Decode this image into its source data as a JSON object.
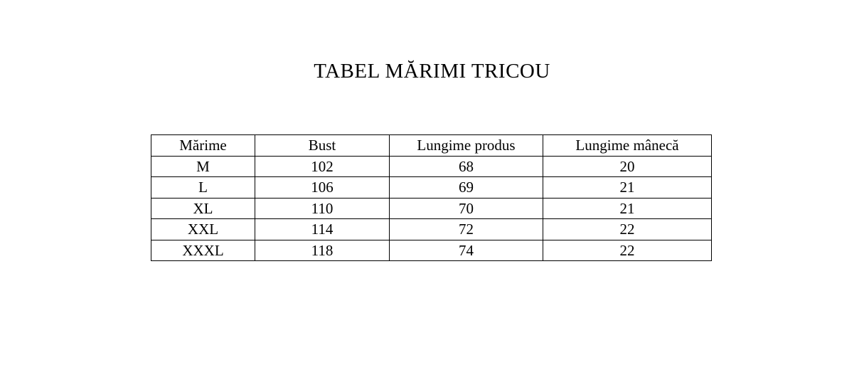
{
  "page": {
    "title": "TABEL MĂRIMI TRICOU",
    "background_color": "#ffffff",
    "text_color": "#000000",
    "table_border_color": "#000000"
  },
  "table": {
    "headers": [
      "Mărime",
      "Bust",
      "Lungime produs",
      "Lungime mânecă"
    ],
    "rows": [
      [
        "M",
        "102",
        "68",
        "20"
      ],
      [
        "L",
        "106",
        "69",
        "21"
      ],
      [
        "XL",
        "110",
        "70",
        "21"
      ],
      [
        "XXL",
        "114",
        "72",
        "22"
      ],
      [
        "XXXL",
        "118",
        "74",
        "22"
      ]
    ]
  }
}
